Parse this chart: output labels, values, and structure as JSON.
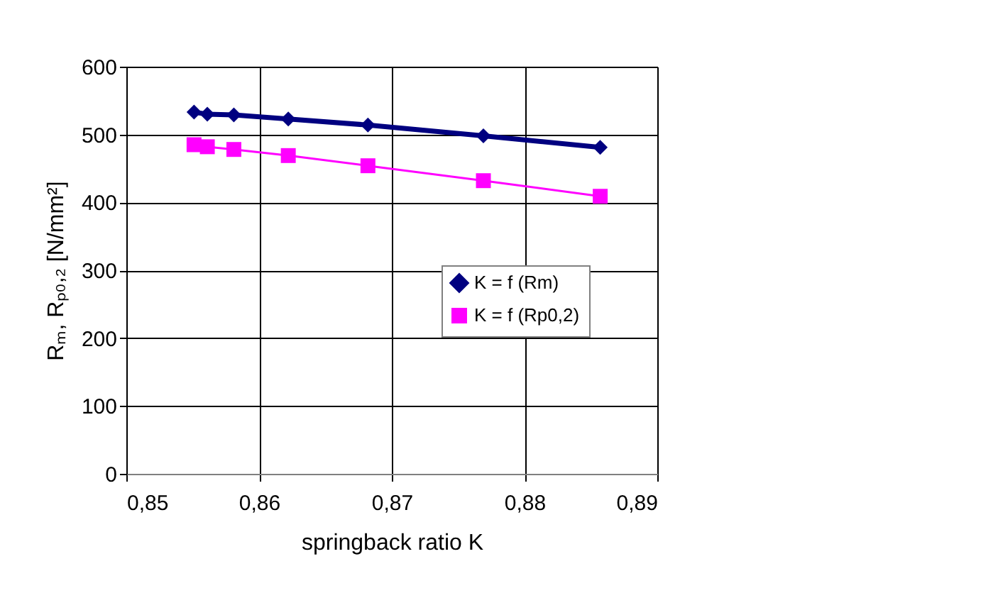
{
  "chart_data": {
    "type": "line",
    "xlabel": "springback ratio K",
    "ylabel": "Rₘ, Rₚ₀,₂ [N/mm²]",
    "xlim": [
      0.85,
      0.89
    ],
    "xticks": [
      {
        "value": 0.85,
        "label": "0,85"
      },
      {
        "value": 0.86,
        "label": "0,86"
      },
      {
        "value": 0.87,
        "label": "0,87"
      },
      {
        "value": 0.88,
        "label": "0,88"
      },
      {
        "value": 0.89,
        "label": "0,89"
      }
    ],
    "ylim": [
      0,
      600
    ],
    "yticks": [
      0,
      100,
      200,
      300,
      400,
      500,
      600
    ],
    "grid": true,
    "legend": "right",
    "series": [
      {
        "name": "K = f (Rm)",
        "color": "#000080",
        "marker": "diamond",
        "x": [
          0.8551,
          0.8561,
          0.8581,
          0.8622,
          0.8682,
          0.8769,
          0.8857
        ],
        "values": [
          533,
          530,
          529,
          523,
          514,
          498,
          481
        ]
      },
      {
        "name": "K = f (Rp0,2)",
        "color": "#ff00ff",
        "marker": "square",
        "x": [
          0.8551,
          0.8561,
          0.8581,
          0.8622,
          0.8682,
          0.8769,
          0.8857
        ],
        "values": [
          485,
          482,
          478,
          469,
          454,
          432,
          409
        ]
      }
    ]
  }
}
